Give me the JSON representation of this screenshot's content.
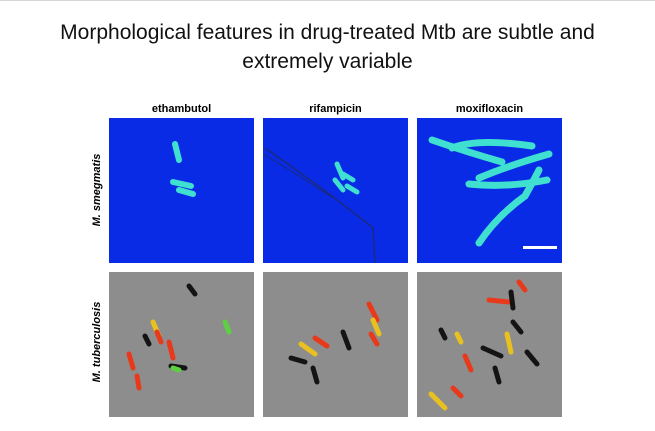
{
  "slide": {
    "title_line1": "Morphological features in drug-treated Mtb are subtle and",
    "title_line2": "extremely variable"
  },
  "figure": {
    "columns": [
      "ethambutol",
      "rifampicin",
      "moxifloxacin"
    ],
    "rows": [
      "M. smegmatis",
      "M. tuberculosis"
    ],
    "panel_types": {
      "smegmatis": "fluorescence image (blue background, cyan bacilli)",
      "tuberculosis": "phase-contrast image (gray background, dark bacilli with red/yellow/green fluorescence)"
    },
    "has_scale_bar": true
  },
  "colors": {
    "fluor_bg": "#0a2be6",
    "fluor_cell": "#3fe0d0",
    "phase_bg": "#8d8d8d",
    "cell_dark": "#141414",
    "cell_red": "#e83a1a",
    "cell_yellow": "#e8c020",
    "cell_green": "#5cd040"
  }
}
